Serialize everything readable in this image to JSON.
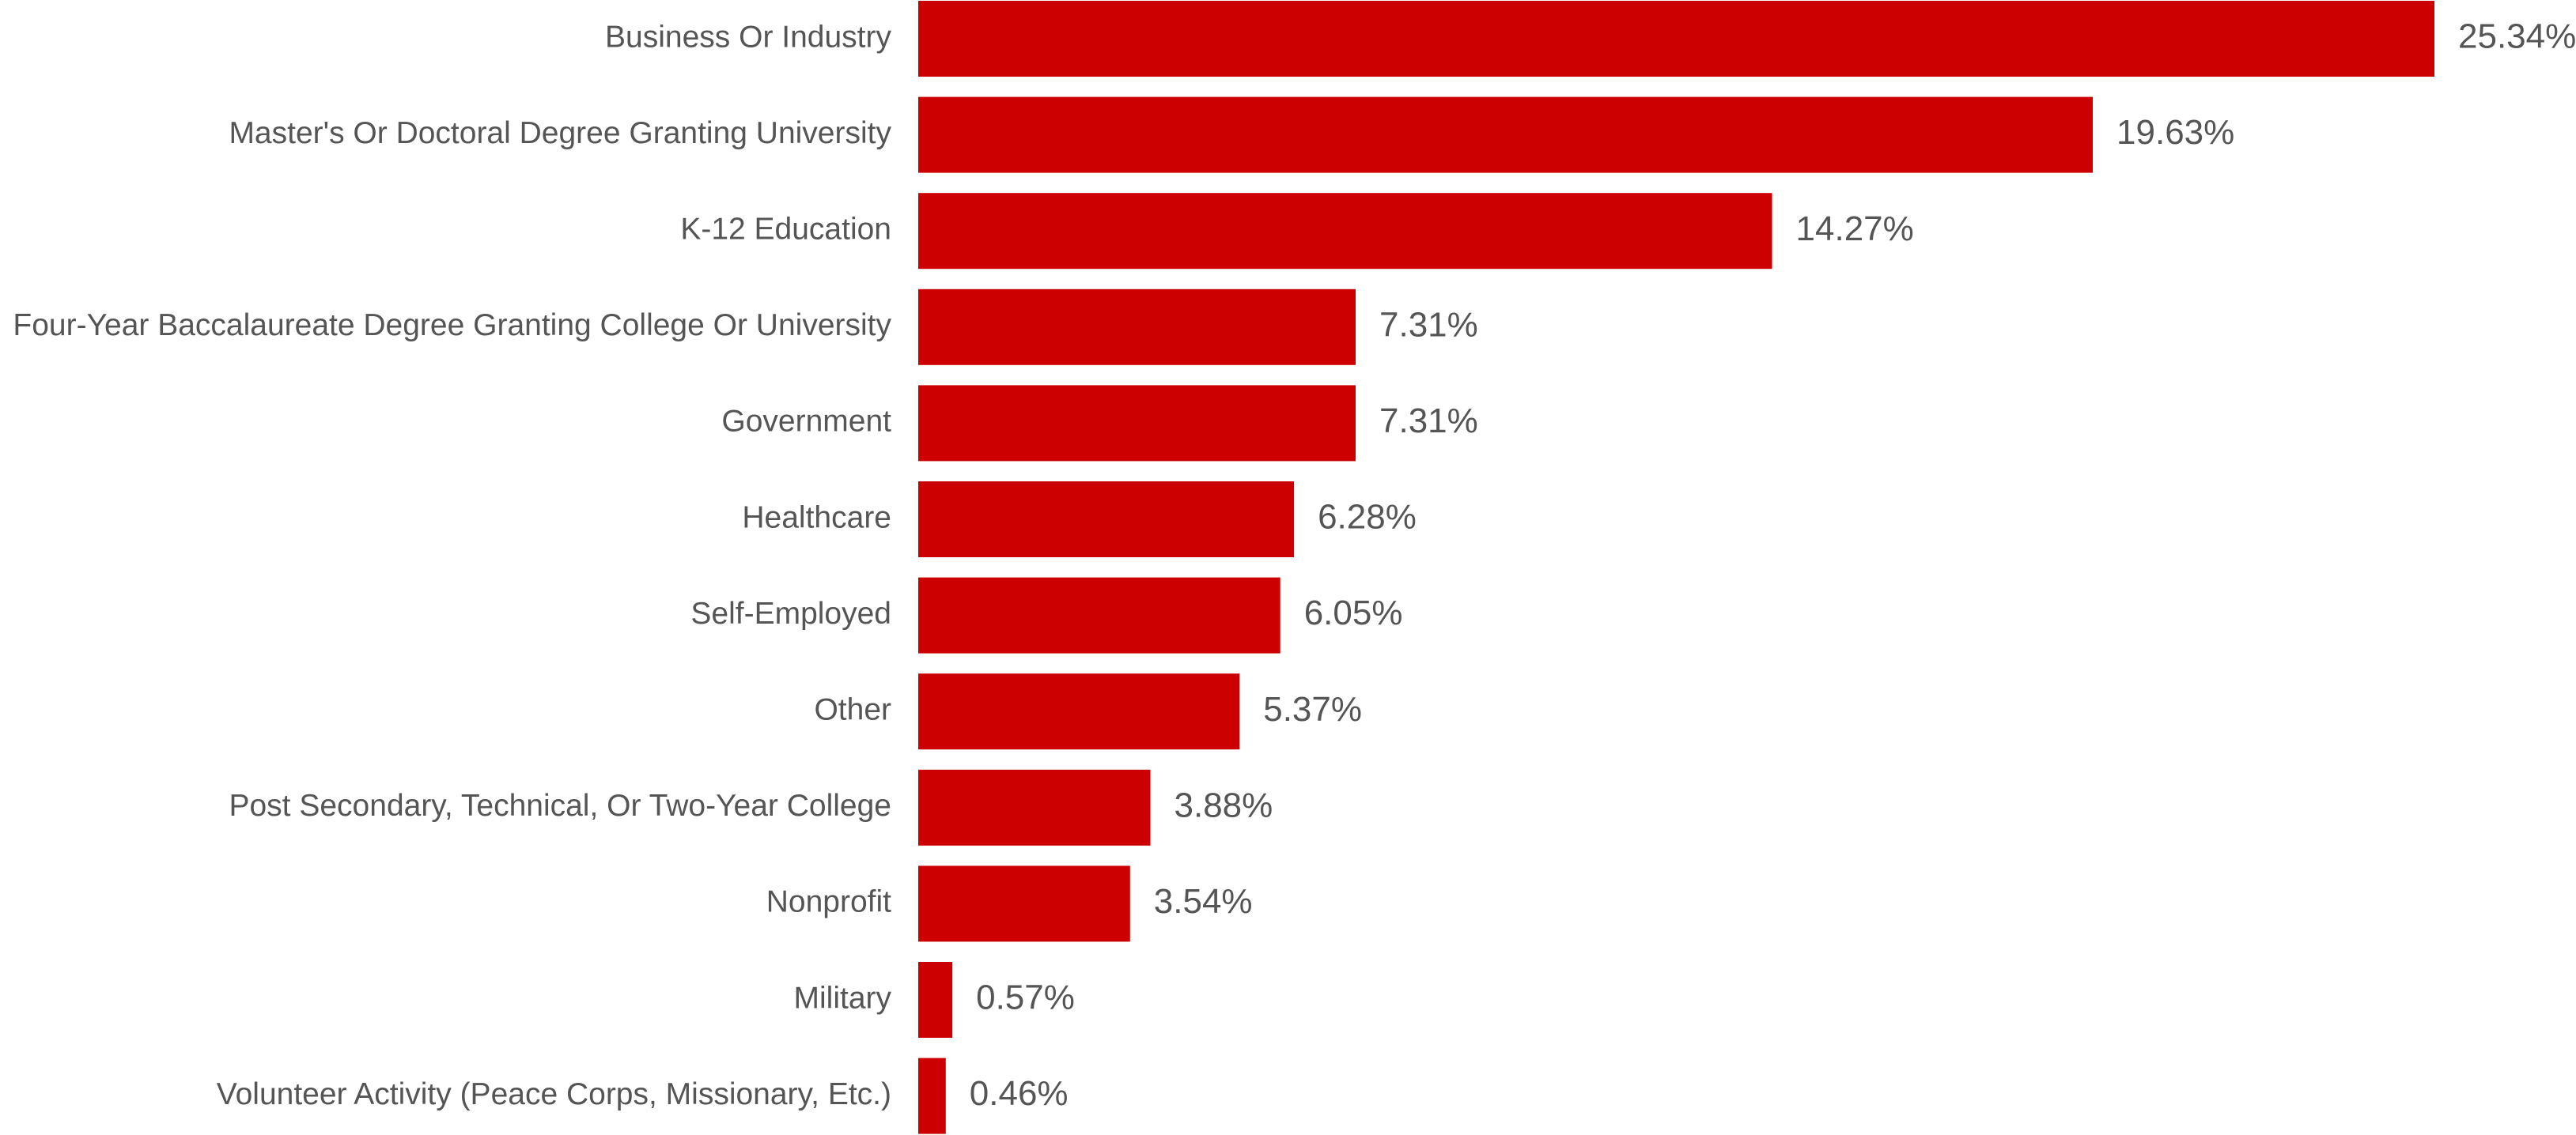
{
  "chart_data": {
    "type": "bar",
    "orientation": "horizontal",
    "title": "",
    "xlabel": "",
    "ylabel": "",
    "grid": false,
    "legend": "none",
    "bar_color": "#cc0000",
    "value_format": "percent",
    "xlim": [
      0,
      25.34
    ],
    "categories": [
      "Business Or Industry",
      "Master's Or Doctoral Degree Granting University",
      "K-12 Education",
      "Four-Year Baccalaureate Degree Granting College Or University",
      "Government",
      "Healthcare",
      "Self-Employed",
      "Other",
      "Post Secondary, Technical, Or Two-Year College",
      "Nonprofit",
      "Military",
      "Volunteer Activity (Peace Corps, Missionary, Etc.)"
    ],
    "values": [
      25.34,
      19.63,
      14.27,
      7.31,
      7.31,
      6.28,
      6.05,
      5.37,
      3.88,
      3.54,
      0.57,
      0.46
    ],
    "value_labels": [
      "25.34%",
      "19.63%",
      "14.27%",
      "7.31%",
      "7.31%",
      "6.28%",
      "6.05%",
      "5.37%",
      "3.88%",
      "3.54%",
      "0.57%",
      "0.46%"
    ]
  }
}
